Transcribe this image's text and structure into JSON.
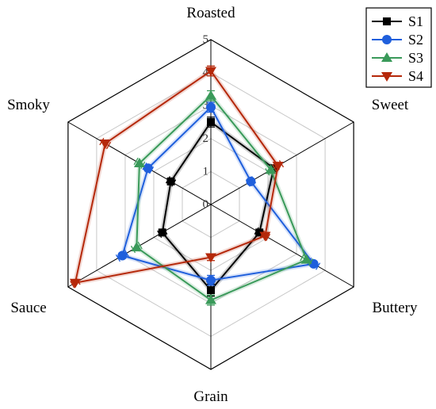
{
  "chart_data": {
    "type": "radar",
    "axes": [
      "Roasted",
      "Sweet",
      "Buttery",
      "Grain",
      "Sauce",
      "Smoky"
    ],
    "rlim": [
      0,
      5
    ],
    "ticks": [
      "0",
      "1",
      "2",
      "3",
      "4",
      "5"
    ],
    "grid": true,
    "error_bars": true,
    "legend_position": "top-right",
    "series": [
      {
        "name": "S1",
        "color": "#000000",
        "marker": "square",
        "values": [
          2.5,
          2.2,
          1.7,
          2.6,
          1.7,
          1.4
        ],
        "errors": [
          0.15,
          0.12,
          0.1,
          0.18,
          0.1,
          0.1
        ]
      },
      {
        "name": "S2",
        "color": "#1f5fdc",
        "marker": "circle",
        "values": [
          2.95,
          1.4,
          3.6,
          2.3,
          3.1,
          2.2
        ],
        "errors": [
          0.15,
          0.1,
          0.15,
          0.15,
          0.15,
          0.12
        ]
      },
      {
        "name": "S3",
        "color": "#3a9a5a",
        "marker": "triangle-up",
        "values": [
          3.3,
          2.1,
          3.35,
          2.9,
          2.6,
          2.5
        ],
        "errors": [
          0.15,
          0.12,
          0.15,
          0.15,
          0.12,
          0.12
        ]
      },
      {
        "name": "S4",
        "color": "#b5280a",
        "marker": "triangle-down",
        "values": [
          4.05,
          2.35,
          1.9,
          1.6,
          4.75,
          3.7
        ],
        "errors": [
          0.15,
          0.12,
          0.1,
          0.1,
          0.1,
          0.12
        ]
      }
    ]
  }
}
